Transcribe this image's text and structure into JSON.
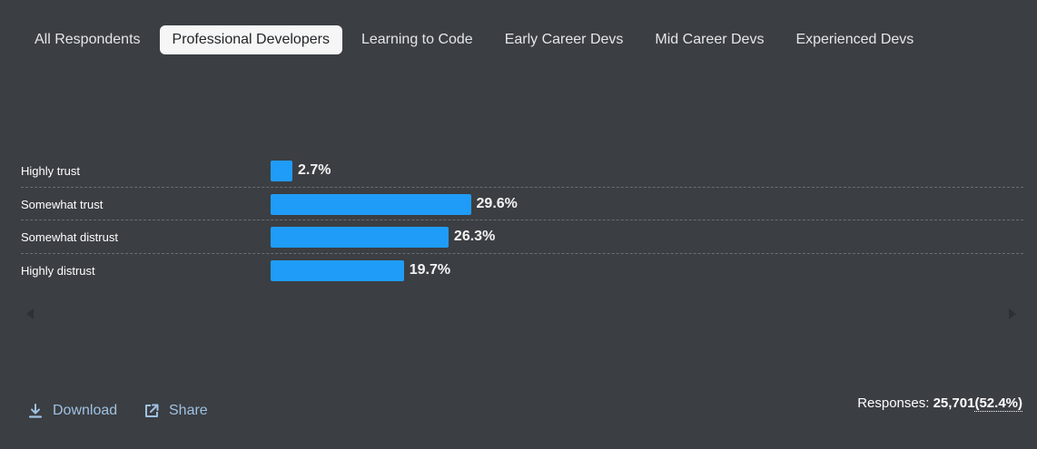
{
  "tabs": [
    {
      "label": "All Respondents",
      "active": false
    },
    {
      "label": "Professional Developers",
      "active": true
    },
    {
      "label": "Learning to Code",
      "active": false
    },
    {
      "label": "Early Career Devs",
      "active": false
    },
    {
      "label": "Mid Career Devs",
      "active": false
    },
    {
      "label": "Experienced Devs",
      "active": false
    }
  ],
  "chart_data": {
    "type": "bar",
    "orientation": "horizontal",
    "categories": [
      "Highly trust",
      "Somewhat trust",
      "Somewhat distrust",
      "Highly distrust"
    ],
    "values": [
      2.7,
      29.6,
      26.3,
      19.7
    ],
    "value_labels": [
      "2.7%",
      "29.6%",
      "26.3%",
      "19.7%"
    ],
    "unit": "%",
    "bar_color": "#1f9cf7"
  },
  "footer": {
    "download_label": "Download",
    "share_label": "Share",
    "responses_label": "Responses:",
    "responses_count": "25,701",
    "responses_pct": "(52.4%)"
  },
  "colors": {
    "background": "#3b3e42",
    "accent": "#1f9cf7",
    "link": "#9fc1e3"
  }
}
